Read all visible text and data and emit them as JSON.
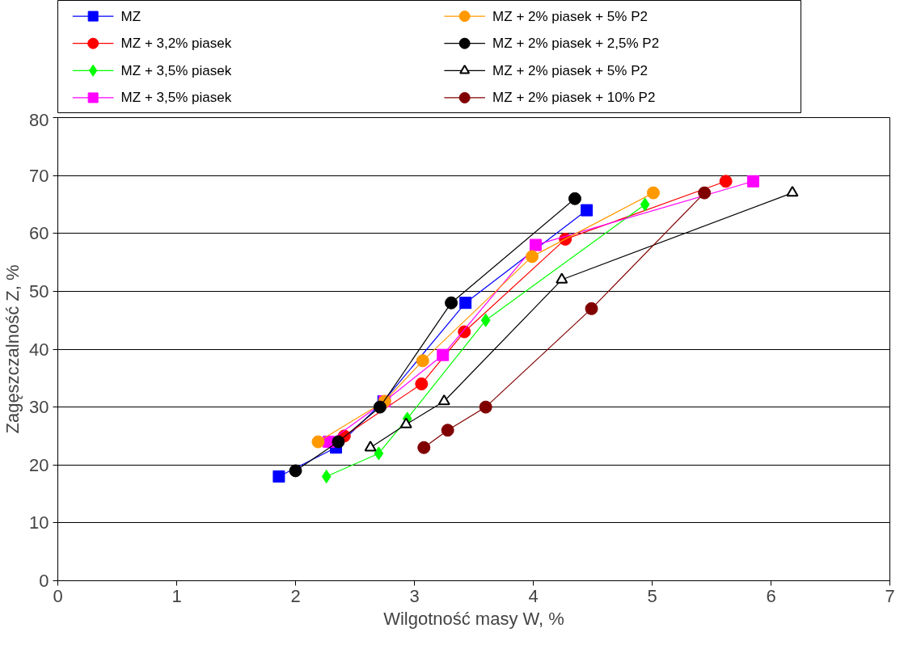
{
  "chart_data": {
    "type": "line",
    "xlabel": "Wilgotność masy W, %",
    "ylabel": "Zagęszczalność Z, %",
    "xlim": [
      0,
      7
    ],
    "xticks": [
      0,
      1,
      2,
      3,
      4,
      5,
      6,
      7
    ],
    "ylim": [
      0,
      80
    ],
    "yticks": [
      0,
      10,
      20,
      30,
      40,
      50,
      60,
      70,
      80
    ],
    "grid": "y",
    "legend": "top",
    "line_style": "solid",
    "series": [
      {
        "name": "MZ",
        "color": "#0000ff",
        "marker": "square",
        "x": [
          1.86,
          2.34,
          2.74,
          3.43,
          4.45
        ],
        "values": [
          18,
          23,
          31,
          48,
          64
        ]
      },
      {
        "name": "MZ + 3,2% piasek",
        "color": "#ff0000",
        "marker": "circle",
        "x": [
          2.41,
          3.06,
          3.42,
          4.27,
          5.62
        ],
        "values": [
          25,
          34,
          43,
          59,
          69
        ]
      },
      {
        "name": "MZ + 3,5% piasek",
        "color": "#00ff00",
        "marker": "diamond",
        "x": [
          2.26,
          2.7,
          2.94,
          3.6,
          4.94
        ],
        "values": [
          18,
          22,
          28,
          45,
          65
        ]
      },
      {
        "name": "MZ + 3,5% piasek",
        "color": "#ff00ff",
        "marker": "square",
        "x": [
          2.28,
          2.75,
          3.24,
          4.02,
          5.85
        ],
        "values": [
          24,
          31,
          39,
          58,
          69
        ]
      },
      {
        "name": "MZ + 2% piasek + 5% P2",
        "color": "#ff9900",
        "marker": "circle",
        "x": [
          2.19,
          2.75,
          3.07,
          3.99,
          5.01
        ],
        "values": [
          24,
          31,
          38,
          56,
          67
        ]
      },
      {
        "name": "MZ + 2% piasek + 2,5% P2",
        "color": "#000000",
        "marker": "circle",
        "x": [
          2.0,
          2.36,
          2.71,
          3.31,
          4.35
        ],
        "values": [
          19,
          24,
          30,
          48,
          66
        ]
      },
      {
        "name": "MZ + 2% piasek + 5% P2",
        "color": "#000000",
        "marker": "triangle",
        "x": [
          2.63,
          2.93,
          3.25,
          4.24,
          6.18
        ],
        "values": [
          23,
          27,
          31,
          52,
          67
        ]
      },
      {
        "name": "MZ + 2% piasek + 10% P2",
        "color": "#800000",
        "marker": "circle",
        "x": [
          3.08,
          3.28,
          3.6,
          4.49,
          5.44
        ],
        "values": [
          23,
          26,
          30,
          47,
          67
        ]
      }
    ]
  }
}
